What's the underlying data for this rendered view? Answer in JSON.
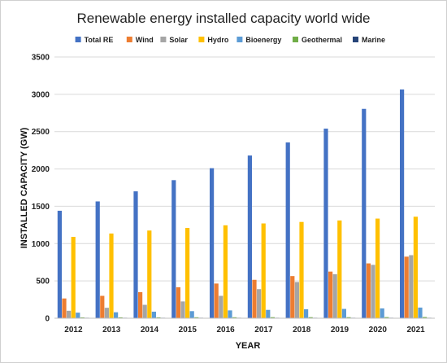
{
  "chart_data": {
    "type": "bar",
    "title": "Renewable energy installed capacity world wide",
    "xlabel": "YEAR",
    "ylabel": "INSTALLED CAPACITY (GW)",
    "ylim": [
      0,
      3500
    ],
    "yticks": [
      0,
      500,
      1000,
      1500,
      2000,
      2500,
      3000,
      3500
    ],
    "grid": true,
    "legend_position": "top",
    "categories": [
      "2012",
      "2013",
      "2014",
      "2015",
      "2016",
      "2017",
      "2018",
      "2019",
      "2020",
      "2021"
    ],
    "series": [
      {
        "name": "Total RE",
        "color": "#4472C4",
        "values": [
          1440,
          1565,
          1700,
          1850,
          2010,
          2180,
          2355,
          2540,
          2805,
          3065
        ]
      },
      {
        "name": "Wind",
        "color": "#ED7D31",
        "values": [
          265,
          300,
          350,
          415,
          465,
          515,
          565,
          625,
          735,
          825
        ]
      },
      {
        "name": "Solar",
        "color": "#A5A5A5",
        "values": [
          100,
          140,
          180,
          225,
          300,
          390,
          485,
          590,
          715,
          845
        ]
      },
      {
        "name": "Hydro",
        "color": "#FFC000",
        "values": [
          1090,
          1135,
          1175,
          1210,
          1245,
          1270,
          1290,
          1310,
          1335,
          1360
        ]
      },
      {
        "name": "Bioenergy",
        "color": "#5B9BD5",
        "values": [
          75,
          80,
          88,
          95,
          105,
          112,
          120,
          125,
          132,
          143
        ]
      },
      {
        "name": "Geothermal",
        "color": "#70AD47",
        "values": [
          11,
          12,
          12,
          13,
          13,
          14,
          14,
          14,
          15,
          16
        ]
      },
      {
        "name": "Marine",
        "color": "#264478",
        "values": [
          0.5,
          0.5,
          0.5,
          0.5,
          0.5,
          0.5,
          0.5,
          0.5,
          0.5,
          0.5
        ]
      }
    ]
  }
}
